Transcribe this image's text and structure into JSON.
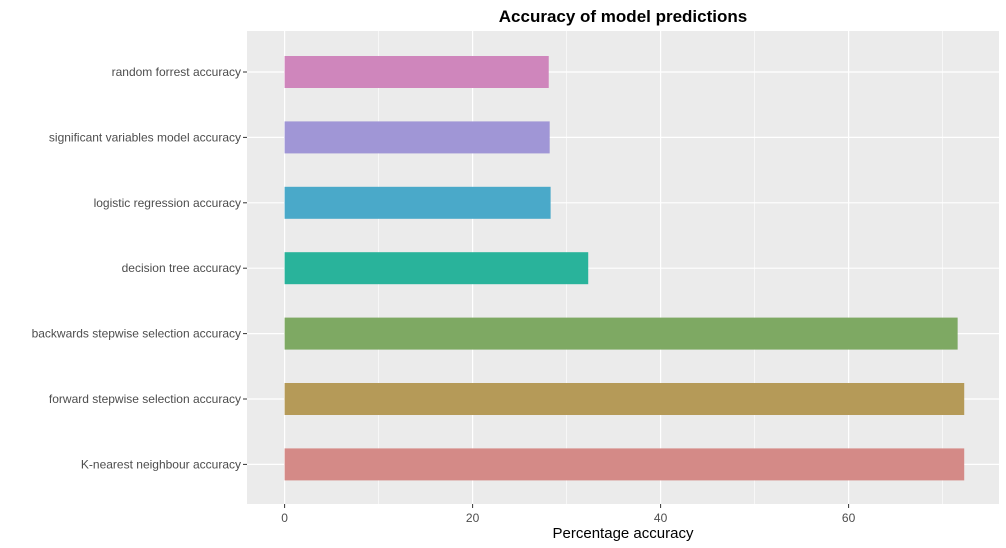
{
  "chart_data": {
    "type": "bar",
    "orientation": "horizontal",
    "title": "Accuracy of model predictions",
    "xlabel": "Percentage accuracy",
    "ylabel": "",
    "xlim": [
      -4,
      76
    ],
    "x_ticks": [
      0,
      20,
      40,
      60
    ],
    "grid": true,
    "legend": "none",
    "categories": [
      "random forrest accuracy",
      "significant variables model accuracy",
      "logistic regression accuracy",
      "decision tree accuracy",
      "backwards stepwise selection accuracy",
      "forward stepwise selection accuracy",
      "K-nearest neighbour accuracy"
    ],
    "values": [
      28.1,
      28.2,
      28.3,
      32.3,
      71.6,
      72.3,
      72.3
    ],
    "colors": [
      "#cf86bc",
      "#a096d6",
      "#4aa9c9",
      "#29b39b",
      "#7ea963",
      "#b59a58",
      "#d48a87"
    ]
  },
  "style": {
    "panel_background": "#ebebeb",
    "grid_color": "#ffffff",
    "tick_color": "#333333"
  }
}
